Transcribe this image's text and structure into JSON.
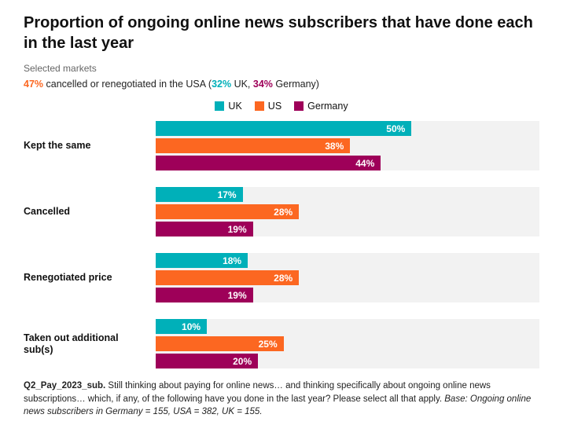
{
  "header": {
    "title": "Proportion of ongoing online news subscribers that have done each in the last year",
    "subtitle": "Selected markets",
    "stat": {
      "usa_value": "47%",
      "usa_text": " cancelled or renegotiated in the USA (",
      "uk_value": "32%",
      "uk_text": " UK, ",
      "de_value": "34%",
      "de_text": " Germany)"
    }
  },
  "colors": {
    "uk_teal": "#00b0b9",
    "us_orange": "#fc6721",
    "germany_magenta": "#9e0059",
    "track_gray": "#f2f2f2"
  },
  "legend": [
    {
      "label": "UK",
      "color": "#00b0b9"
    },
    {
      "label": "US",
      "color": "#fc6721"
    },
    {
      "label": "Germany",
      "color": "#9e0059"
    }
  ],
  "chart_data": {
    "type": "bar",
    "orientation": "horizontal",
    "title": "Proportion of ongoing online news subscribers that have done each in the last year",
    "categories": [
      "Kept the same",
      "Cancelled",
      "Renegotiated price",
      "Taken out additional sub(s)"
    ],
    "series": [
      {
        "name": "UK",
        "color": "#00b0b9",
        "values": [
          50,
          17,
          18,
          10
        ]
      },
      {
        "name": "US",
        "color": "#fc6721",
        "values": [
          38,
          28,
          28,
          25
        ]
      },
      {
        "name": "Germany",
        "color": "#9e0059",
        "values": [
          44,
          19,
          19,
          20
        ]
      }
    ],
    "value_suffix": "%",
    "xlim": [
      0,
      75
    ],
    "grid": false,
    "legend_position": "top-center"
  },
  "footer": {
    "code": "Q2_Pay_2023_sub.",
    "text": " Still thinking about paying for online news… and thinking specifically about ongoing online news subscriptions… which, if any, of the following have you done in the last year? Please select all that apply. ",
    "base_italic": "Base: Ongoing online news subscribers in Germany = 155, USA = 382, UK = 155."
  }
}
